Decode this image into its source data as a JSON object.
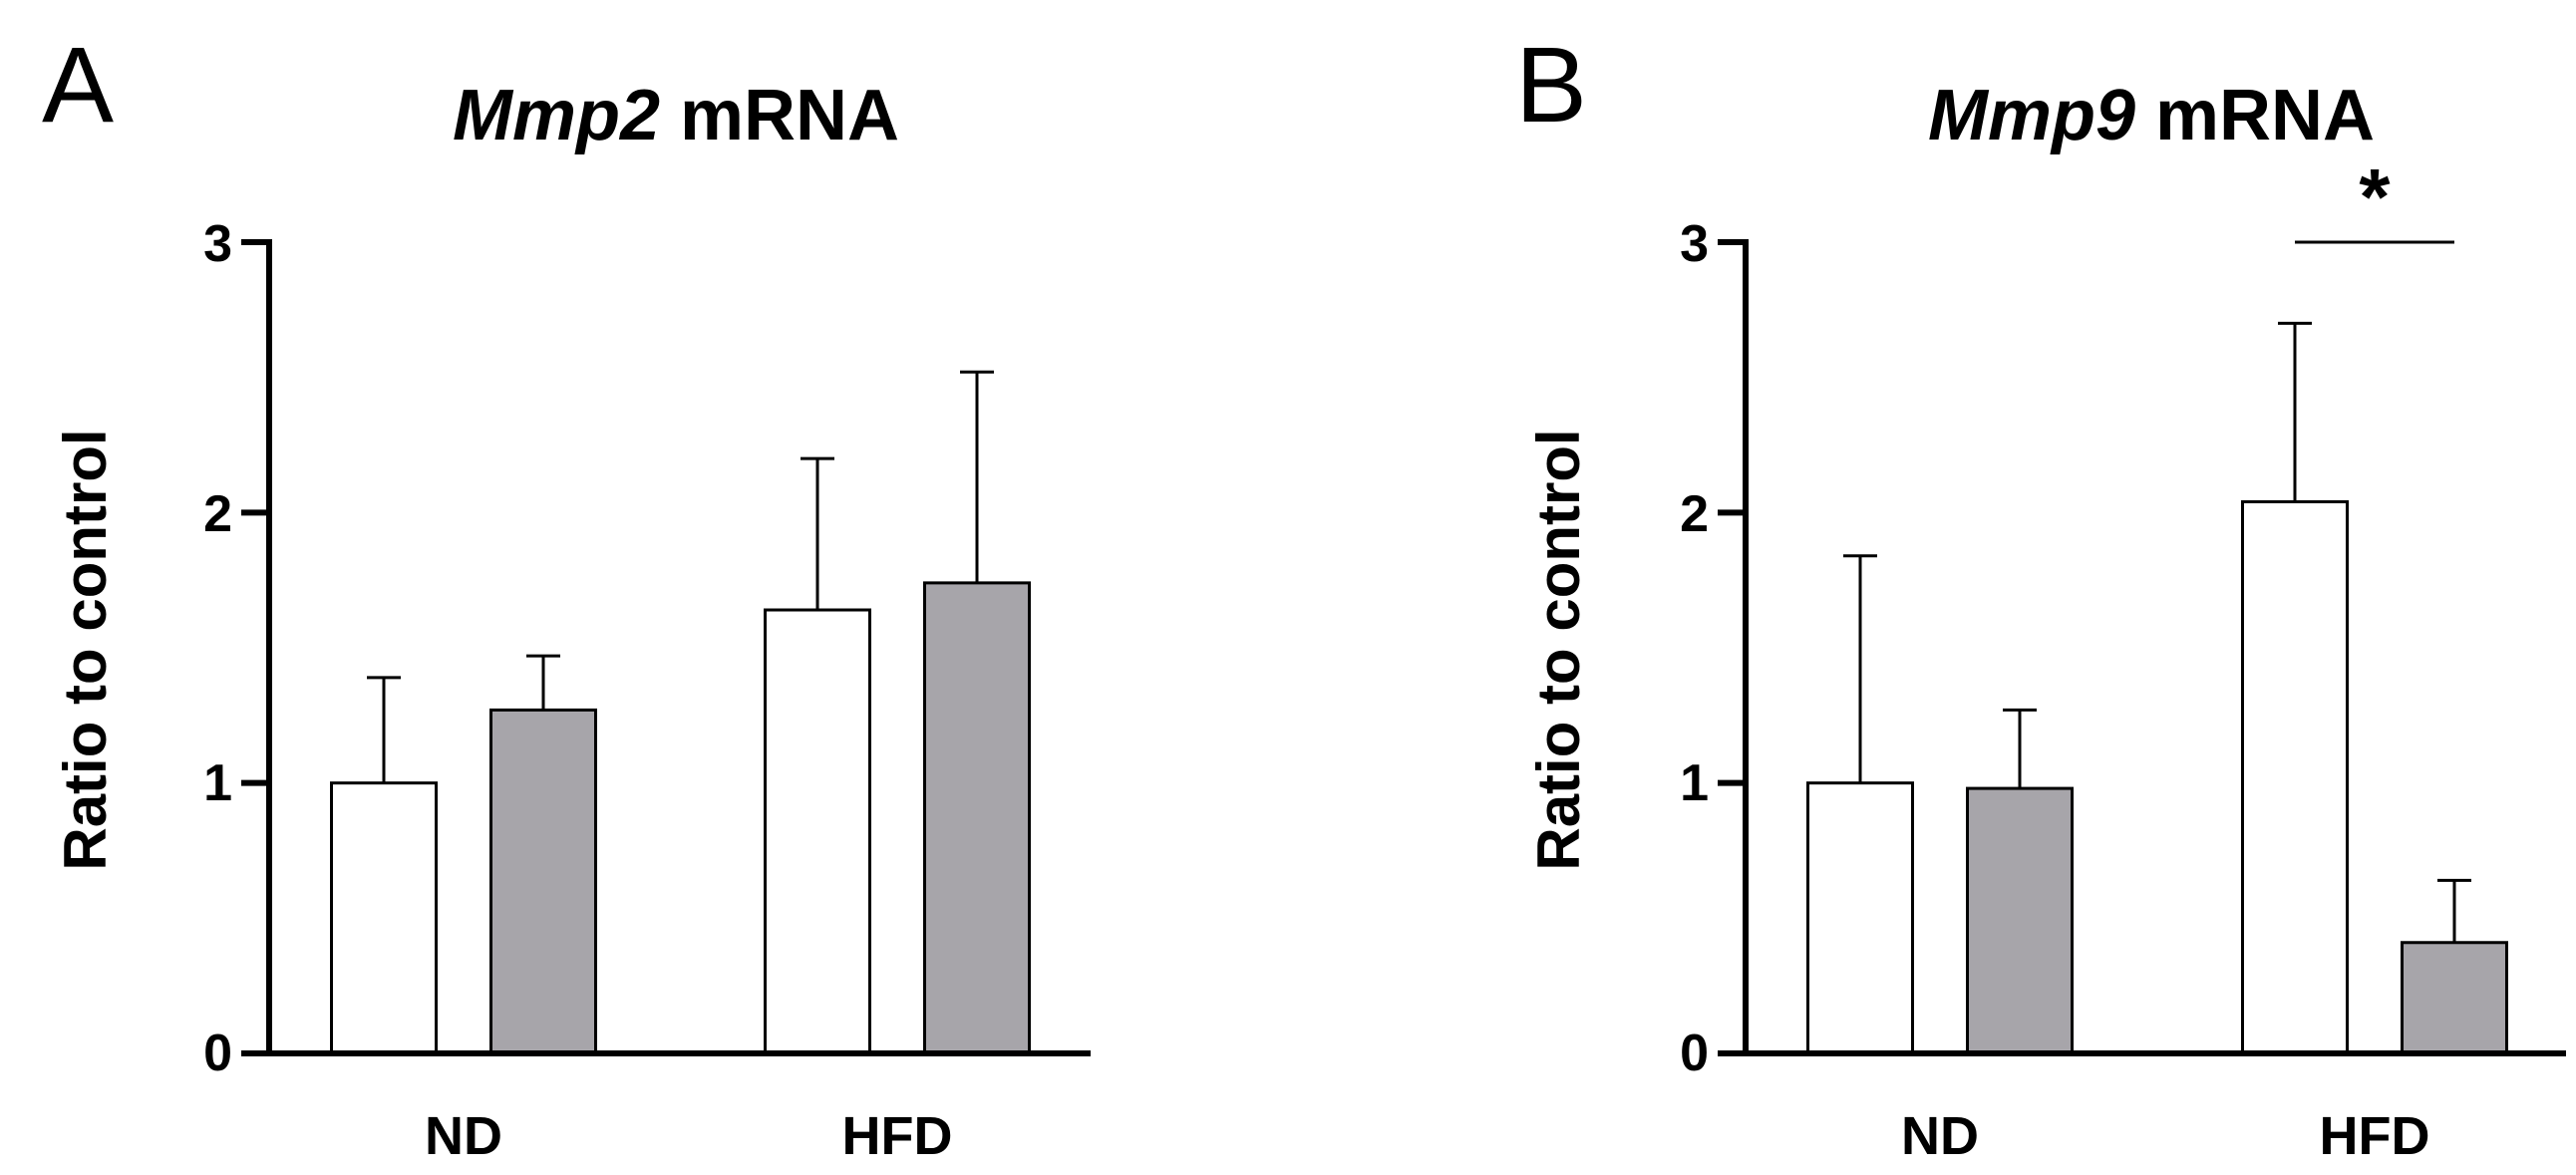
{
  "colors": {
    "control": "#ffffff",
    "treated": "#a7a5aa",
    "outline": "#000000"
  },
  "chart_data": [
    {
      "type": "bar",
      "panel": "A",
      "title_italic": "Mmp2",
      "title_rest": " mRNA",
      "ylabel": "Ratio to control",
      "ylim": [
        0,
        3
      ],
      "yticks": [
        "0",
        "1",
        "2",
        "3"
      ],
      "categories": [
        "ND",
        "HFD"
      ],
      "series": [
        {
          "values": [
            1.0,
            1.64
          ],
          "errors": [
            0.39,
            0.56
          ]
        },
        {
          "values": [
            1.27,
            1.74
          ],
          "errors": [
            0.2,
            0.78
          ]
        }
      ],
      "significance": []
    },
    {
      "type": "bar",
      "panel": "B",
      "title_italic": "Mmp9",
      "title_rest": " mRNA",
      "ylabel": "Ratio to control",
      "ylim": [
        0,
        3
      ],
      "yticks": [
        "0",
        "1",
        "2",
        "3"
      ],
      "categories": [
        "ND",
        "HFD"
      ],
      "series": [
        {
          "values": [
            1.0,
            2.04
          ],
          "errors": [
            0.84,
            0.66
          ]
        },
        {
          "values": [
            0.98,
            0.41
          ],
          "errors": [
            0.29,
            0.23
          ]
        }
      ],
      "significance": [
        {
          "category": 1,
          "label": "*",
          "y": 3.0
        }
      ]
    }
  ]
}
